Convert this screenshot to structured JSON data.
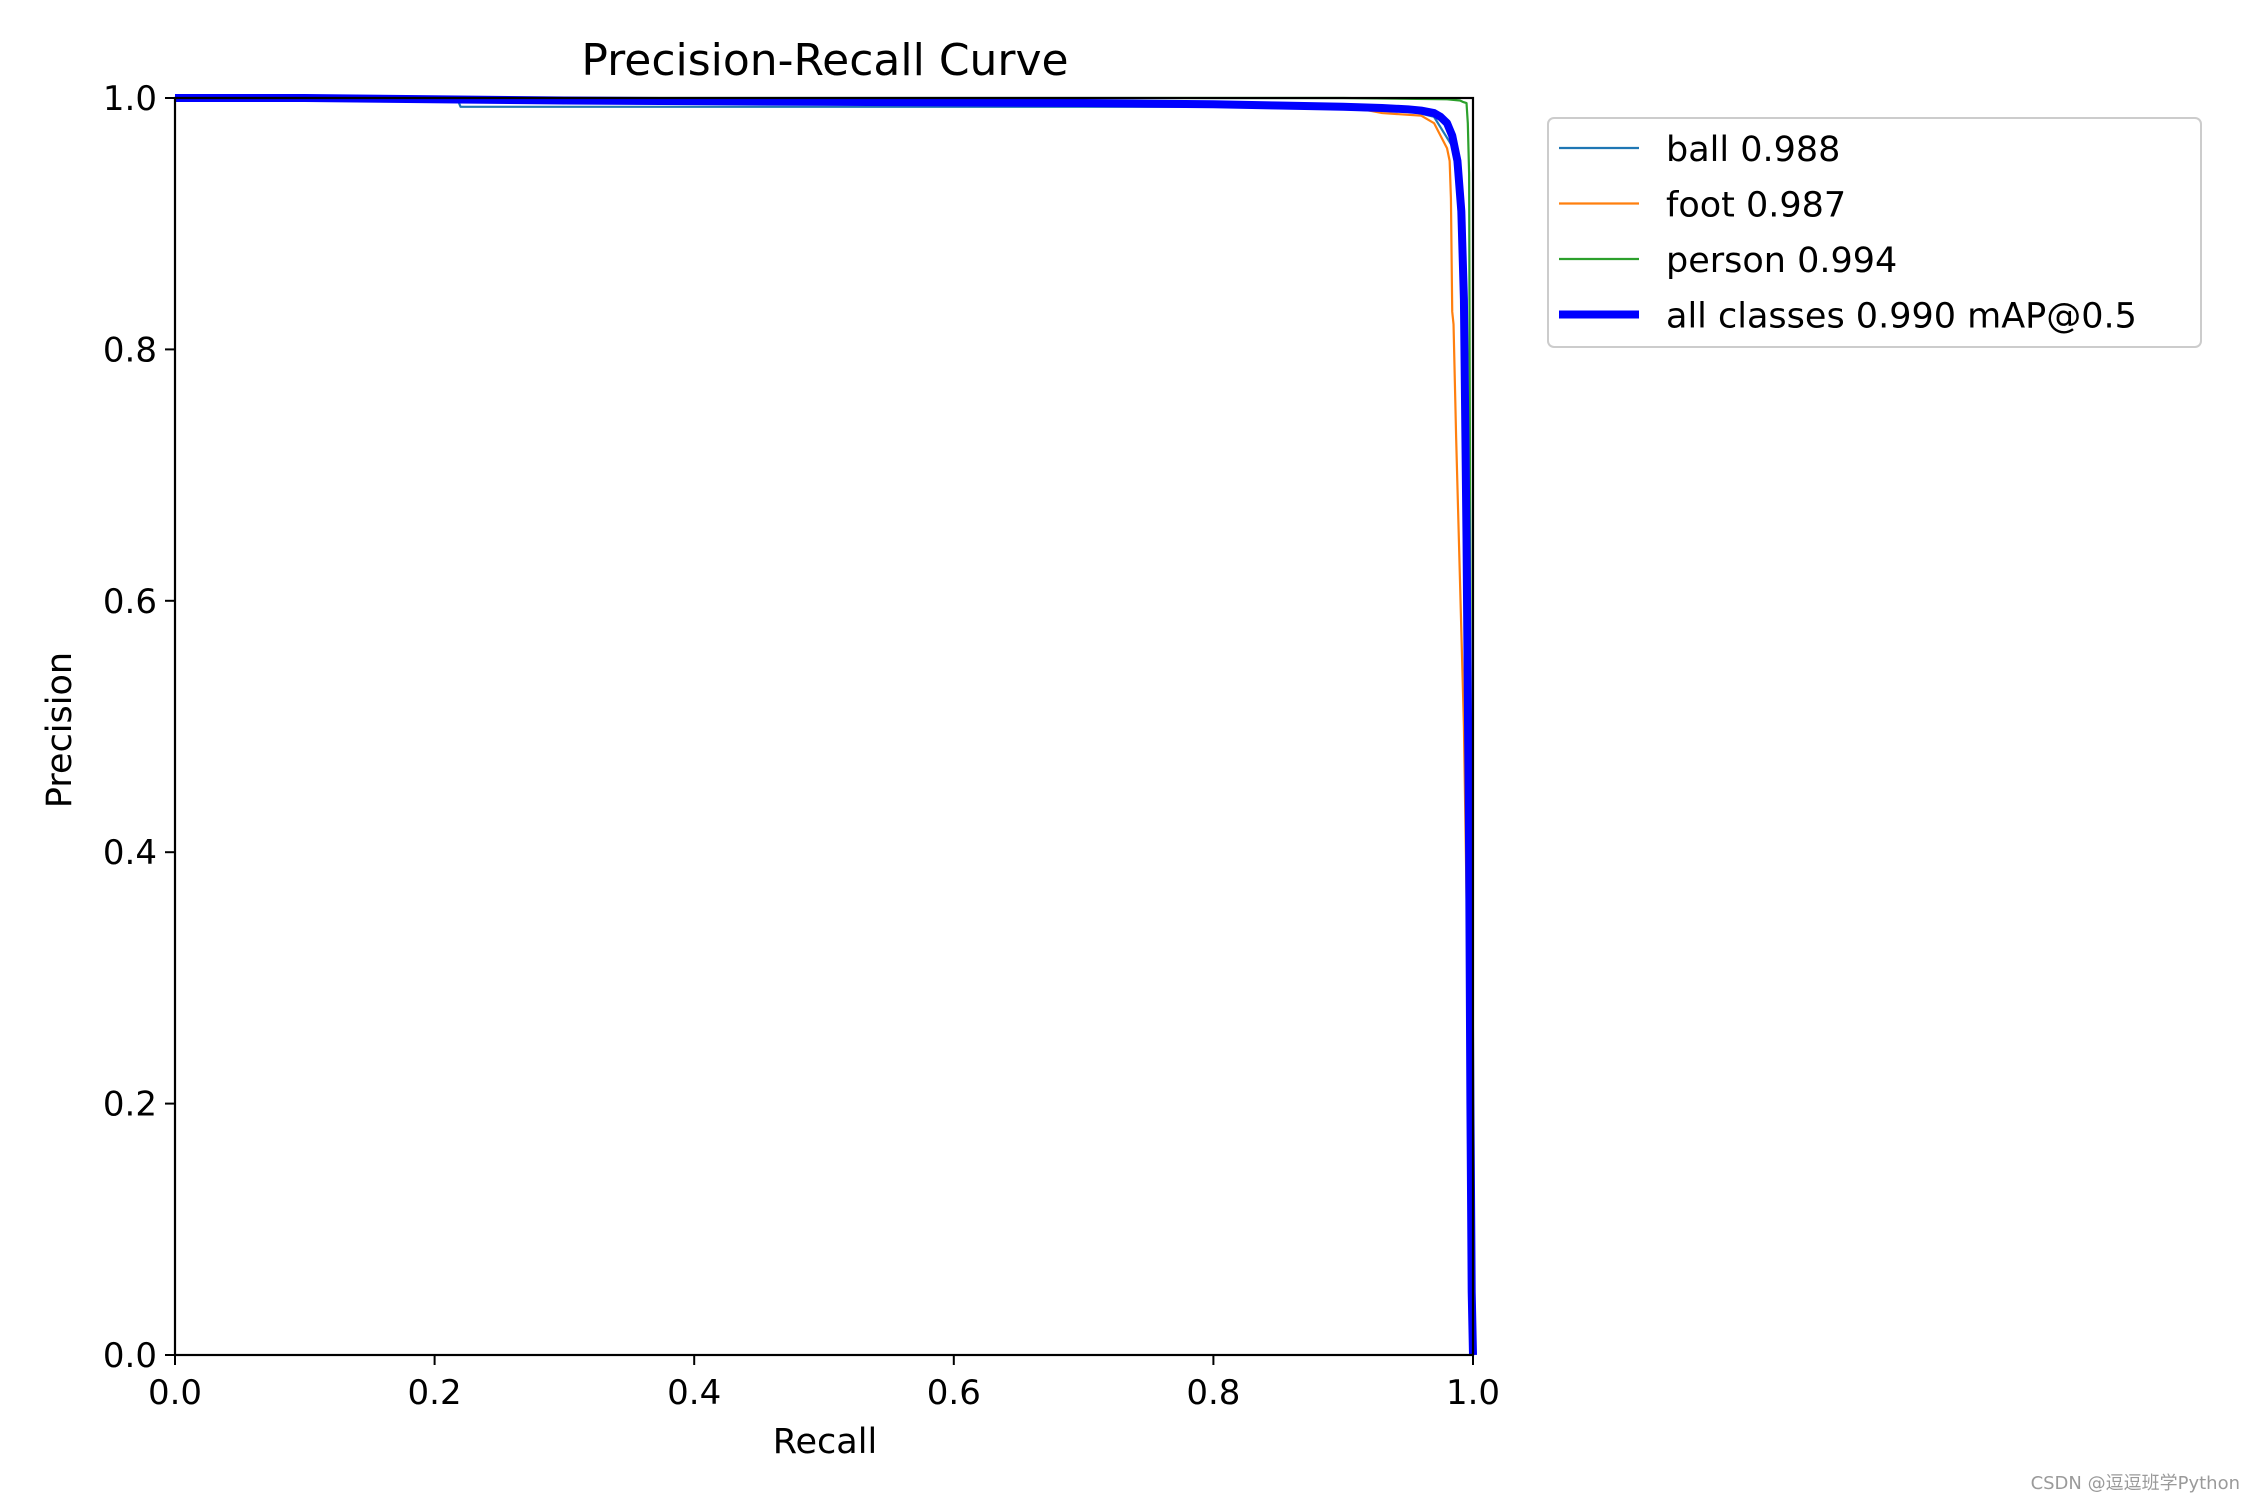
{
  "chart_data": {
    "type": "line",
    "title": "Precision-Recall Curve",
    "xlabel": "Recall",
    "ylabel": "Precision",
    "xlim": [
      0,
      1
    ],
    "ylim": [
      0,
      1
    ],
    "xticks": [
      "0.0",
      "0.2",
      "0.4",
      "0.6",
      "0.8",
      "1.0"
    ],
    "yticks": [
      "0.0",
      "0.2",
      "0.4",
      "0.6",
      "0.8",
      "1.0"
    ],
    "grid": false,
    "legend_position": "outside-upper-right",
    "series": [
      {
        "name": "ball 0.988",
        "color": "#1f77b4",
        "width": "thin",
        "x": [
          0.0,
          0.1,
          0.2,
          0.218,
          0.22,
          0.5,
          0.8,
          0.9,
          0.95,
          0.97,
          0.985,
          0.993,
          0.996,
          0.998,
          0.999,
          1.0
        ],
        "y": [
          1.0,
          1.0,
          0.999,
          0.998,
          0.993,
          0.993,
          0.993,
          0.992,
          0.99,
          0.985,
          0.96,
          0.9,
          0.7,
          0.4,
          0.1,
          0.0
        ]
      },
      {
        "name": "foot 0.987",
        "color": "#ff7f0e",
        "width": "thin",
        "x": [
          0.0,
          0.1,
          0.3,
          0.5,
          0.7,
          0.85,
          0.92,
          0.93,
          0.96,
          0.97,
          0.975,
          0.98,
          0.982,
          0.983,
          0.984,
          0.985,
          0.987,
          0.993,
          0.996,
          0.998,
          1.0
        ],
        "y": [
          1.0,
          1.0,
          0.999,
          0.998,
          0.997,
          0.996,
          0.99,
          0.988,
          0.986,
          0.98,
          0.97,
          0.96,
          0.95,
          0.92,
          0.83,
          0.82,
          0.73,
          0.5,
          0.3,
          0.1,
          0.0
        ]
      },
      {
        "name": "person 0.994",
        "color": "#2ca02c",
        "width": "thin",
        "x": [
          0.0,
          0.5,
          0.9,
          0.98,
          0.99,
          0.992,
          0.995,
          0.996,
          0.997,
          0.998,
          0.999,
          1.0
        ],
        "y": [
          1.0,
          1.0,
          1.0,
          0.999,
          0.998,
          0.997,
          0.996,
          0.98,
          0.94,
          0.6,
          0.1,
          0.0
        ]
      },
      {
        "name": "all classes 0.990 mAP@0.5",
        "color": "#0000ff",
        "width": "thick",
        "x": [
          0.0,
          0.1,
          0.3,
          0.5,
          0.7,
          0.8,
          0.85,
          0.9,
          0.93,
          0.95,
          0.96,
          0.97,
          0.975,
          0.98,
          0.984,
          0.988,
          0.991,
          0.993,
          0.995,
          0.997,
          0.998,
          0.999,
          1.0
        ],
        "y": [
          1.0,
          1.0,
          0.998,
          0.997,
          0.996,
          0.995,
          0.994,
          0.993,
          0.992,
          0.991,
          0.99,
          0.988,
          0.985,
          0.98,
          0.97,
          0.95,
          0.91,
          0.84,
          0.65,
          0.4,
          0.2,
          0.05,
          0.0
        ]
      }
    ]
  },
  "watermark": "CSDN @逗逗班学Python"
}
